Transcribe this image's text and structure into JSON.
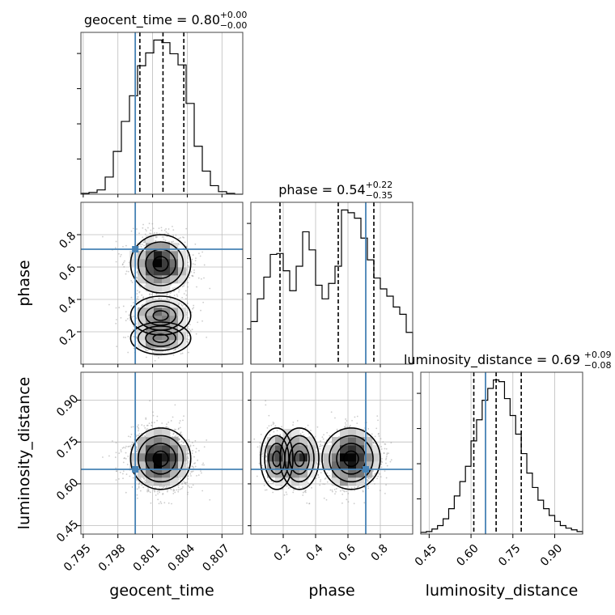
{
  "colors": {
    "truth": "#4682b4",
    "hist": "#000000",
    "grid": "#bcbcbc",
    "scatter": "#9a9a9a"
  },
  "chart_data": {
    "type": "corner",
    "parameters": [
      "geocent_time",
      "phase",
      "luminosity_distance"
    ],
    "axis_labels": [
      "geocent_time",
      "phase",
      "luminosity_distance"
    ],
    "titles": [
      {
        "name": "geocent_time",
        "median": "0.80",
        "upper": "+0.00",
        "lower": "−0.00"
      },
      {
        "name": "phase",
        "median": "0.54",
        "upper": "+0.22",
        "lower": "−0.35"
      },
      {
        "name": "luminosity_distance",
        "median": "0.69",
        "upper": "+0.09",
        "lower": "−0.08"
      }
    ],
    "ranges": [
      [
        0.7948,
        0.8088
      ],
      [
        0.0,
        1.0
      ],
      [
        0.42,
        1.0
      ]
    ],
    "ticks": {
      "geocent_time": {
        "values": [
          0.795,
          0.798,
          0.801,
          0.804,
          0.807
        ],
        "labels": [
          "0.795",
          "0.798",
          "0.801",
          "0.804",
          "0.807"
        ]
      },
      "phase": {
        "values": [
          0.2,
          0.4,
          0.6,
          0.8
        ],
        "labels": [
          "0.2",
          "0.4",
          "0.6",
          "0.8"
        ]
      },
      "luminosity_distance": {
        "values": [
          0.45,
          0.6,
          0.75,
          0.9
        ],
        "labels": [
          "0.45",
          "0.60",
          "0.75",
          "0.90"
        ]
      }
    },
    "truths": {
      "geocent_time": 0.7995,
      "phase": 0.71,
      "luminosity_distance": 0.652
    },
    "quantiles": {
      "geocent_time": [
        0.7999,
        0.8019,
        0.8037
      ],
      "phase": [
        0.18,
        0.54,
        0.76
      ],
      "luminosity_distance": [
        0.61,
        0.69,
        0.78
      ]
    },
    "histograms": {
      "geocent_time": {
        "edges": [
          0.7948,
          0.7955,
          0.7962,
          0.7969,
          0.7976,
          0.7983,
          0.799,
          0.7997,
          0.8004,
          0.8011,
          0.8018,
          0.8025,
          0.8032,
          0.8039,
          0.8046,
          0.8053,
          0.806,
          0.8067,
          0.8074,
          0.8081,
          0.8088
        ],
        "counts": [
          1,
          2,
          5,
          20,
          50,
          85,
          115,
          150,
          165,
          180,
          177,
          164,
          151,
          106,
          56,
          27,
          10,
          3,
          1,
          0
        ]
      },
      "phase": {
        "edges": [
          0.0,
          0.04,
          0.08,
          0.12,
          0.16,
          0.2,
          0.24,
          0.28,
          0.32,
          0.36,
          0.4,
          0.44,
          0.48,
          0.52,
          0.56,
          0.6,
          0.64,
          0.68,
          0.72,
          0.76,
          0.8,
          0.84,
          0.88,
          0.92,
          0.96,
          1.0
        ],
        "counts": [
          47,
          72,
          96,
          121,
          122,
          103,
          81,
          108,
          146,
          126,
          87,
          72,
          89,
          108,
          170,
          167,
          161,
          139,
          115,
          95,
          83,
          75,
          63,
          55,
          35
        ]
      },
      "luminosity_distance": {
        "edges": [
          0.42,
          0.44,
          0.46,
          0.48,
          0.5,
          0.52,
          0.54,
          0.56,
          0.58,
          0.6,
          0.62,
          0.64,
          0.66,
          0.68,
          0.7,
          0.72,
          0.74,
          0.76,
          0.78,
          0.8,
          0.82,
          0.84,
          0.86,
          0.88,
          0.9,
          0.92,
          0.94,
          0.96,
          0.98,
          1.0
        ],
        "counts": [
          2,
          3,
          6,
          10,
          18,
          30,
          45,
          62,
          80,
          110,
          135,
          158,
          172,
          182,
          180,
          160,
          140,
          118,
          95,
          72,
          55,
          40,
          30,
          22,
          15,
          10,
          7,
          5,
          3
        ]
      }
    },
    "grid": true,
    "has_2d_density_contours": true
  }
}
